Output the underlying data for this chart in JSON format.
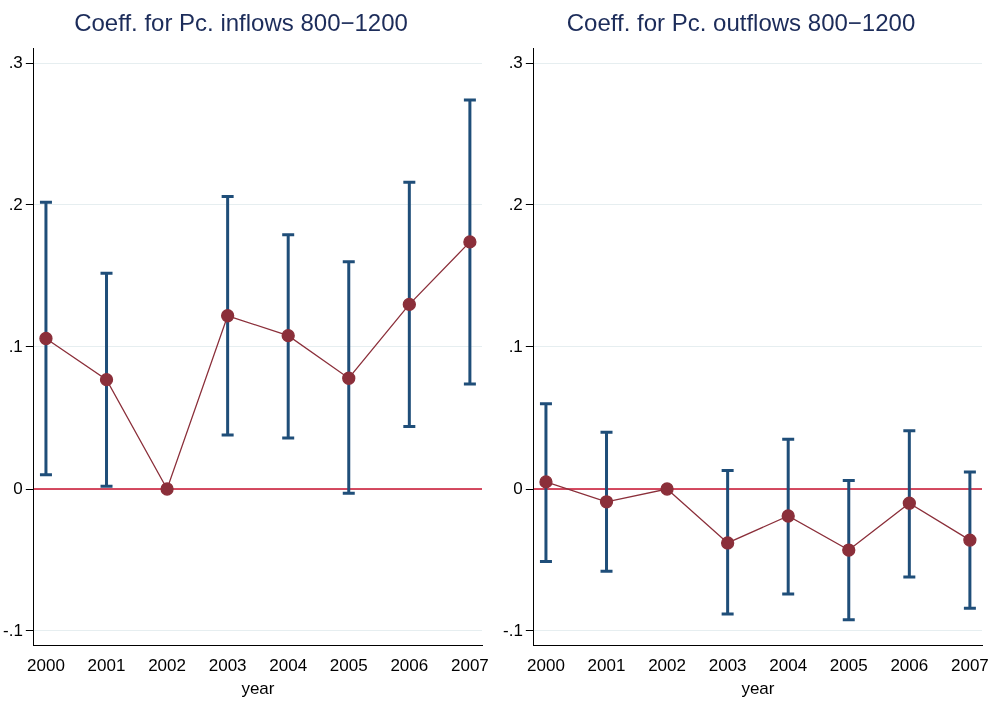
{
  "chart_data": [
    {
      "type": "line",
      "title": "Coeff. for Pc. inflows 800−1200",
      "xlabel": "year",
      "x": [
        2000,
        2001,
        2002,
        2003,
        2004,
        2005,
        2006,
        2007
      ],
      "xlim": [
        1999.8,
        2007.2
      ],
      "xticks": [
        2000,
        2001,
        2002,
        2003,
        2004,
        2005,
        2006,
        2007
      ],
      "ylim": [
        -0.11,
        0.31
      ],
      "yticks": [
        {
          "value": -0.1,
          "label": "-.1"
        },
        {
          "value": 0,
          "label": "0"
        },
        {
          "value": 0.1,
          "label": ".1"
        },
        {
          "value": 0.2,
          "label": ".2"
        },
        {
          "value": 0.3,
          "label": ".3"
        }
      ],
      "grid": "y",
      "marker": "circle",
      "line_style": "solid",
      "series": [
        {
          "color": "#8b2f3a",
          "values": [
            0.106,
            0.077,
            0,
            0.122,
            0.108,
            0.078,
            0.13,
            0.174
          ],
          "errors": [
            [
              0.01,
              0.202
            ],
            [
              0.002,
              0.152
            ],
            null,
            [
              0.038,
              0.206
            ],
            [
              0.036,
              0.179
            ],
            [
              -0.003,
              0.16
            ],
            [
              0.044,
              0.216
            ],
            [
              0.074,
              0.274
            ]
          ]
        }
      ],
      "ref_lines": [
        {
          "axis": "y",
          "value": 0,
          "color": "#c8102e"
        }
      ]
    },
    {
      "type": "line",
      "title": "Coeff. for Pc. outflows 800−1200",
      "xlabel": "year",
      "x": [
        2000,
        2001,
        2002,
        2003,
        2004,
        2005,
        2006,
        2007
      ],
      "xlim": [
        1999.8,
        2007.2
      ],
      "xticks": [
        2000,
        2001,
        2002,
        2003,
        2004,
        2005,
        2006,
        2007
      ],
      "ylim": [
        -0.11,
        0.31
      ],
      "yticks": [
        {
          "value": -0.1,
          "label": "-.1"
        },
        {
          "value": 0,
          "label": "0"
        },
        {
          "value": 0.1,
          "label": ".1"
        },
        {
          "value": 0.2,
          "label": ".2"
        },
        {
          "value": 0.3,
          "label": ".3"
        }
      ],
      "grid": "y",
      "marker": "circle",
      "line_style": "solid",
      "series": [
        {
          "color": "#8b2f3a",
          "values": [
            0.005,
            -0.009,
            0,
            -0.038,
            -0.019,
            -0.043,
            -0.01,
            -0.036
          ],
          "errors": [
            [
              -0.051,
              0.06
            ],
            [
              -0.058,
              0.04
            ],
            null,
            [
              -0.088,
              0.013
            ],
            [
              -0.074,
              0.035
            ],
            [
              -0.092,
              0.006
            ],
            [
              -0.062,
              0.041
            ],
            [
              -0.084,
              0.012
            ]
          ]
        }
      ],
      "ref_lines": [
        {
          "axis": "y",
          "value": 0,
          "color": "#c8102e"
        }
      ]
    }
  ]
}
